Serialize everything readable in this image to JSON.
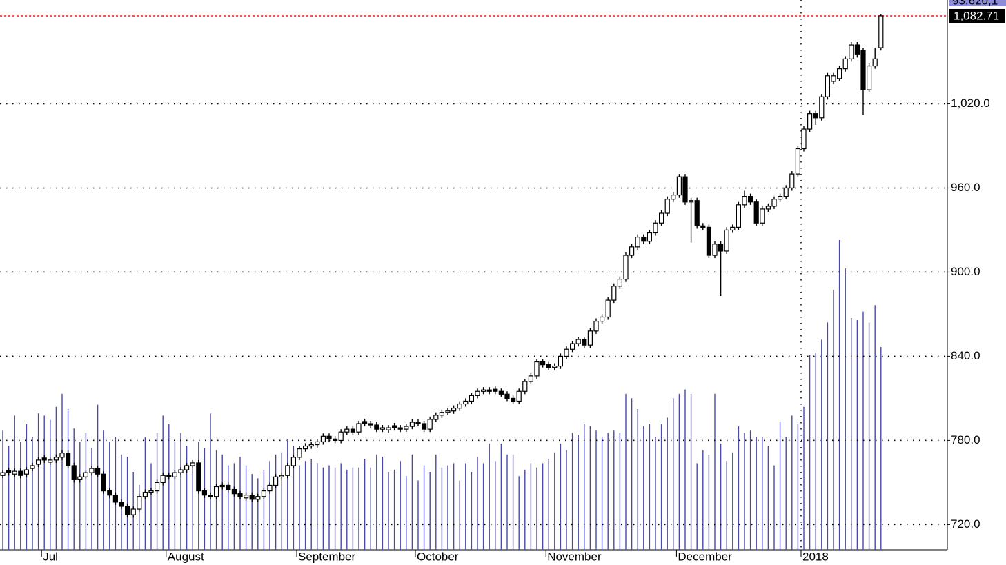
{
  "chart_data": {
    "type": "candlestick",
    "categories": [
      null,
      null,
      null,
      null,
      null,
      null,
      null,
      "Jul",
      null,
      null,
      null,
      null,
      null,
      null,
      null,
      null,
      null,
      null,
      null,
      null,
      null,
      null,
      null,
      null,
      null,
      null,
      null,
      null,
      "August",
      null,
      null,
      null,
      null,
      null,
      null,
      null,
      null,
      null,
      null,
      null,
      null,
      null,
      null,
      null,
      null,
      null,
      null,
      null,
      null,
      null,
      "September",
      null,
      null,
      null,
      null,
      null,
      null,
      null,
      null,
      null,
      null,
      null,
      null,
      null,
      null,
      null,
      null,
      null,
      null,
      null,
      "October",
      null,
      null,
      null,
      null,
      null,
      null,
      null,
      null,
      null,
      null,
      null,
      null,
      null,
      null,
      null,
      null,
      null,
      null,
      null,
      null,
      null,
      "November",
      null,
      null,
      null,
      null,
      null,
      null,
      null,
      null,
      null,
      null,
      null,
      null,
      null,
      null,
      null,
      null,
      null,
      null,
      null,
      null,
      null,
      "December",
      null,
      null,
      null,
      null,
      null,
      null,
      null,
      null,
      null,
      null,
      null,
      null,
      null,
      null,
      null,
      null,
      null,
      null,
      null,
      null,
      "2018",
      null,
      null,
      null,
      null,
      null,
      null,
      null,
      null,
      null,
      null,
      null,
      null,
      null
    ],
    "open": [
      755,
      758.5,
      756,
      758,
      756,
      760,
      763,
      767.5,
      764.5,
      766,
      768,
      771,
      762,
      752,
      754,
      757,
      760,
      756,
      744,
      741,
      736,
      733,
      727,
      731,
      740,
      743,
      744,
      750,
      755,
      754,
      757,
      759,
      762,
      764,
      744,
      741,
      740,
      747,
      748,
      745,
      742,
      739,
      741,
      738,
      740,
      744,
      748,
      754,
      755,
      762,
      768,
      774,
      776,
      777,
      779,
      783,
      781,
      780,
      786,
      788,
      786,
      793.5,
      792,
      791,
      788,
      787.5,
      790.5,
      789,
      788,
      790,
      793,
      792,
      788,
      795,
      798,
      800,
      801,
      803,
      806,
      808,
      812,
      815,
      816,
      816.5,
      815,
      813,
      810,
      808,
      815,
      822,
      826,
      836,
      834,
      832,
      833,
      840,
      845,
      849,
      852,
      848,
      858,
      865,
      868,
      880,
      890,
      895,
      912,
      918,
      925,
      922,
      928,
      935,
      942,
      952,
      955,
      968,
      950,
      951,
      933,
      932,
      912,
      920,
      915,
      930,
      932,
      948,
      954,
      950,
      935,
      945,
      947,
      952,
      954,
      960,
      970,
      988,
      1002,
      1013,
      1010,
      1025,
      1036,
      1038,
      1045,
      1052,
      1062,
      1058,
      1030,
      1047,
      1060
    ],
    "high": [
      759,
      760.5,
      760,
      760,
      761,
      764,
      768,
      769.5,
      768,
      770,
      773,
      773,
      764,
      756,
      759,
      762,
      762,
      758,
      746,
      743,
      738,
      735,
      733,
      742,
      745,
      746,
      752,
      757,
      757,
      759,
      761,
      764,
      766,
      766,
      746,
      743,
      749,
      750,
      750,
      747,
      744,
      743,
      743,
      742,
      746,
      750,
      756,
      757,
      764,
      770,
      776,
      778,
      779,
      781,
      785,
      785,
      783,
      788,
      790,
      790,
      794,
      795.5,
      794,
      793,
      791,
      791,
      792.5,
      791,
      792,
      795,
      795,
      794,
      797,
      800,
      802,
      803,
      805,
      808,
      810,
      814,
      817,
      818,
      818,
      818.5,
      817,
      815,
      812,
      817,
      824,
      828,
      838,
      838,
      836,
      835,
      842,
      847,
      851,
      854,
      854,
      860,
      867,
      870,
      882,
      892,
      897,
      914,
      920,
      927,
      927,
      930,
      937,
      944,
      954,
      957,
      970,
      970,
      953,
      953,
      935,
      934,
      922,
      922,
      932,
      934,
      950,
      958,
      956,
      952,
      947,
      949,
      954,
      956,
      962,
      972,
      990,
      1004,
      1015,
      1015,
      1027,
      1042,
      1042,
      1047,
      1054,
      1064,
      1064,
      1060,
      1049,
      1060,
      1084
    ],
    "low": [
      753,
      755,
      754,
      753,
      754,
      758,
      761,
      764,
      762.5,
      764,
      766,
      760,
      750,
      750,
      752,
      755,
      754,
      742,
      739,
      734,
      731,
      725,
      725,
      729,
      738,
      741,
      742,
      748,
      752,
      752,
      755,
      757,
      760,
      742,
      739,
      738,
      738,
      745,
      743,
      740,
      738,
      737,
      736,
      736,
      738,
      742,
      746,
      752,
      753,
      760,
      766,
      772,
      774,
      775,
      777,
      779,
      778,
      778,
      784,
      784,
      784,
      790,
      789,
      786,
      786,
      785.5,
      787,
      786,
      786,
      788,
      790,
      786,
      786,
      793,
      796,
      798,
      799,
      801,
      804,
      806,
      810,
      813,
      813,
      813,
      811,
      808,
      806,
      806,
      813,
      820,
      824,
      832,
      830,
      830,
      831,
      838,
      843,
      847,
      846,
      846,
      856,
      863,
      866,
      878,
      888,
      893,
      910,
      916,
      920,
      920,
      926,
      933,
      940,
      950,
      953,
      948,
      921,
      931,
      930,
      910,
      910,
      883,
      913,
      928,
      930,
      946,
      948,
      933,
      933,
      943,
      945,
      950,
      952,
      958,
      968,
      986,
      1000,
      1005,
      1008,
      1023,
      1034,
      1036,
      1043,
      1050,
      1053,
      1012,
      1028,
      1045,
      1058
    ],
    "close": [
      757,
      757,
      758,
      755,
      759,
      762,
      766,
      766,
      766,
      768,
      771,
      762,
      752,
      754,
      757,
      760,
      756,
      744,
      741,
      736,
      733,
      727,
      731,
      740,
      743,
      744,
      750,
      755,
      754,
      757,
      759,
      762,
      764,
      744,
      741,
      740,
      747,
      748,
      745,
      742,
      740,
      741,
      738,
      740,
      744,
      748,
      754,
      755,
      762,
      768,
      774,
      776,
      777,
      779,
      783,
      781,
      780,
      786,
      788,
      786,
      792,
      792,
      791,
      788,
      789,
      789,
      789,
      788,
      790,
      793,
      792,
      788,
      795,
      798,
      800,
      801,
      803,
      806,
      808,
      812,
      815,
      816,
      815,
      815,
      813,
      810,
      808,
      815,
      822,
      826,
      836,
      834,
      832,
      833,
      840,
      845,
      849,
      852,
      848,
      858,
      865,
      868,
      880,
      890,
      895,
      912,
      918,
      925,
      922,
      928,
      935,
      942,
      952,
      955,
      968,
      950,
      951,
      933,
      932,
      912,
      920,
      915,
      930,
      932,
      948,
      954,
      950,
      935,
      945,
      947,
      952,
      954,
      960,
      970,
      988,
      1002,
      1013,
      1010,
      1025,
      1040,
      1040,
      1045,
      1052,
      1062,
      1055,
      1030,
      1047,
      1052,
      1082.71
    ],
    "volume": [
      55,
      48,
      62,
      50,
      58,
      52,
      63,
      62,
      60,
      66,
      72,
      65,
      56,
      50,
      54,
      47,
      67,
      55,
      50,
      52,
      44,
      43,
      36,
      30,
      52,
      40,
      54,
      62,
      58,
      50,
      54,
      48,
      41,
      50,
      47,
      63,
      46,
      44,
      39,
      40,
      43,
      39,
      35,
      33,
      37,
      41,
      44,
      45,
      51,
      48,
      39,
      41,
      42,
      40,
      38,
      39,
      38,
      40,
      37,
      38,
      38,
      42,
      38,
      44,
      43,
      36,
      37,
      41,
      34,
      44,
      32,
      39,
      36,
      44,
      38,
      39,
      40,
      32,
      40,
      36,
      43,
      40,
      49,
      41,
      49,
      44,
      44,
      34,
      37,
      40,
      38,
      40,
      42,
      45,
      49,
      46,
      54,
      53,
      58,
      57,
      55,
      52,
      54,
      55,
      54,
      72,
      70,
      65,
      57,
      58,
      52,
      58,
      61,
      70,
      72,
      74,
      72,
      40,
      46,
      44,
      72,
      49,
      41,
      45,
      57,
      54,
      55,
      52,
      52,
      48,
      39,
      59,
      52,
      62,
      58,
      66,
      90,
      91,
      97,
      105,
      120,
      143,
      130,
      107,
      106,
      110,
      105,
      113,
      93.62
    ],
    "volume_color": "#4848a8",
    "up_color": "#ffffff",
    "down_color": "#000000",
    "last_line_color": "#e02020",
    "ylim": [
      702,
      1094
    ],
    "yticks": [
      {
        "value": 720,
        "label": "720.0"
      },
      {
        "value": 780,
        "label": "780.0"
      },
      {
        "value": 840,
        "label": "840.0"
      },
      {
        "value": 900,
        "label": "900.0"
      },
      {
        "value": 960,
        "label": "960.0"
      },
      {
        "value": 1020,
        "label": "1,020.0"
      }
    ],
    "grid": true,
    "last_label": "1,082.71",
    "volume_tag": "93,620,1"
  }
}
